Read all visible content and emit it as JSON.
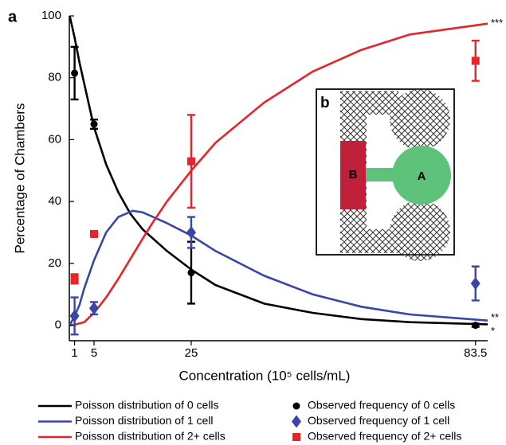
{
  "chart_data": {
    "type": "line",
    "panel_label": "a",
    "x_label": "Concentration (10⁵ cells/mL)",
    "y_label": "Percentage of Chambers",
    "xlim": [
      0,
      86
    ],
    "ylim": [
      -5,
      100
    ],
    "xticks": [
      1,
      5,
      25,
      83.5
    ],
    "yticks": [
      0,
      20,
      40,
      60,
      80,
      100
    ],
    "series": [
      {
        "type": "line",
        "name": "Poisson distribution of 0 cells",
        "color": "#000000",
        "annotation": "*",
        "x": [
          0,
          1,
          2,
          3,
          5,
          7.5,
          10,
          12.5,
          15,
          20,
          25,
          30,
          40,
          50,
          60,
          70,
          86
        ],
        "values": [
          100,
          93,
          85,
          78,
          64,
          52,
          43,
          36,
          31,
          24,
          18,
          13,
          7,
          4,
          2,
          1,
          0.3
        ]
      },
      {
        "type": "line",
        "name": "Poisson distribution of 1 cell",
        "color": "#3a45a8",
        "annotation": "**",
        "x": [
          0,
          1,
          2,
          3,
          5,
          7.5,
          10,
          13,
          15,
          20,
          25,
          30,
          40,
          50,
          60,
          70,
          86
        ],
        "values": [
          0,
          3,
          6.5,
          12,
          21,
          30,
          35,
          37,
          36.5,
          33,
          29,
          24,
          16,
          10,
          6,
          3.5,
          1.5
        ]
      },
      {
        "type": "line",
        "name": "Poisson distribution of 2+ cells",
        "color": "#e8232a",
        "annotation": "***",
        "x": [
          0,
          1,
          3,
          5,
          7.5,
          10,
          15,
          17,
          20,
          25,
          30,
          40,
          50,
          60,
          70,
          86
        ],
        "values": [
          0,
          0.2,
          1,
          4,
          9,
          15,
          28,
          33,
          40,
          50,
          59,
          72,
          82,
          89,
          94,
          97.5
        ]
      },
      {
        "type": "scatter",
        "name": "Observed frequency of 0 cells",
        "color": "#000000",
        "marker": "circle",
        "x": [
          1,
          5,
          25,
          83.5
        ],
        "values": [
          81.5,
          65,
          17,
          0
        ],
        "errors": [
          8.5,
          1.5,
          10,
          0.5
        ]
      },
      {
        "type": "scatter",
        "name": "Observed frequency of 1 cell",
        "color": "#3a45a8",
        "marker": "diamond",
        "x": [
          1,
          5,
          25,
          83.5
        ],
        "values": [
          3,
          5.5,
          30,
          13.5
        ],
        "errors": [
          6,
          2,
          5,
          5.5
        ]
      },
      {
        "type": "scatter",
        "name": "Observed frequency of 2+ cells",
        "color": "#e8232a",
        "marker": "square",
        "x": [
          1,
          5,
          25,
          83.5
        ],
        "values": [
          15,
          29.5,
          53,
          85.5
        ],
        "errors": [
          1.5,
          0.5,
          15,
          6.5
        ]
      }
    ],
    "inset": {
      "label": "b",
      "chamber_b": "B",
      "chamber_a": "A"
    }
  }
}
